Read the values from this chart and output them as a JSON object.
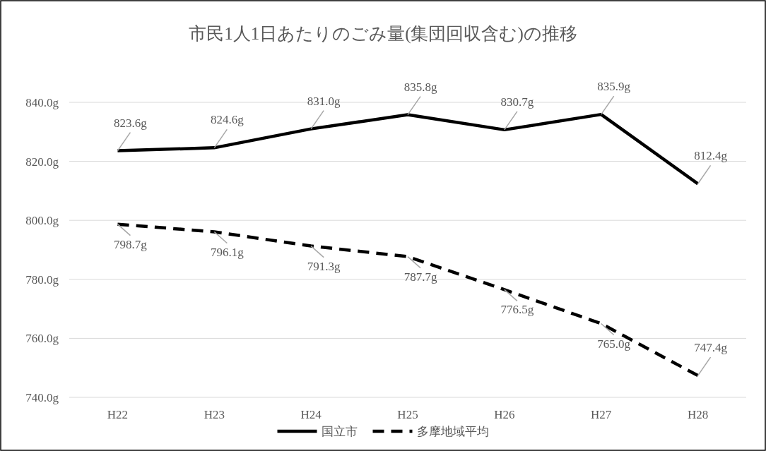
{
  "chart_data": {
    "type": "line",
    "title": "市民1人1日あたりのごみ量(集団回収含む)の推移",
    "categories": [
      "H22",
      "H23",
      "H24",
      "H25",
      "H26",
      "H27",
      "H28"
    ],
    "series": [
      {
        "name": "国立市",
        "color": "#000000",
        "line_style": "solid",
        "values": [
          823.6,
          824.6,
          831.0,
          835.8,
          830.7,
          835.9,
          812.4
        ],
        "value_labels": [
          "823.6g",
          "824.6g",
          "831.0g",
          "835.8g",
          "830.7g",
          "835.9g",
          "812.4g"
        ]
      },
      {
        "name": "多摩地域平均",
        "color": "#000000",
        "line_style": "dashed",
        "values": [
          798.7,
          796.1,
          791.3,
          787.7,
          776.5,
          765.0,
          747.4
        ],
        "value_labels": [
          "798.7g",
          "796.1g",
          "791.3g",
          "787.7g",
          "776.5g",
          "765.0g",
          "747.4g"
        ]
      }
    ],
    "ylim": [
      740,
      840
    ],
    "yticks": [
      {
        "value": 740,
        "label": "740.0g"
      },
      {
        "value": 760,
        "label": "760.0g"
      },
      {
        "value": 780,
        "label": "780.0g"
      },
      {
        "value": 800,
        "label": "800.0g"
      },
      {
        "value": 820,
        "label": "820.0g"
      },
      {
        "value": 840,
        "label": "840.0g"
      }
    ],
    "grid": "y",
    "legend": "bottom"
  }
}
